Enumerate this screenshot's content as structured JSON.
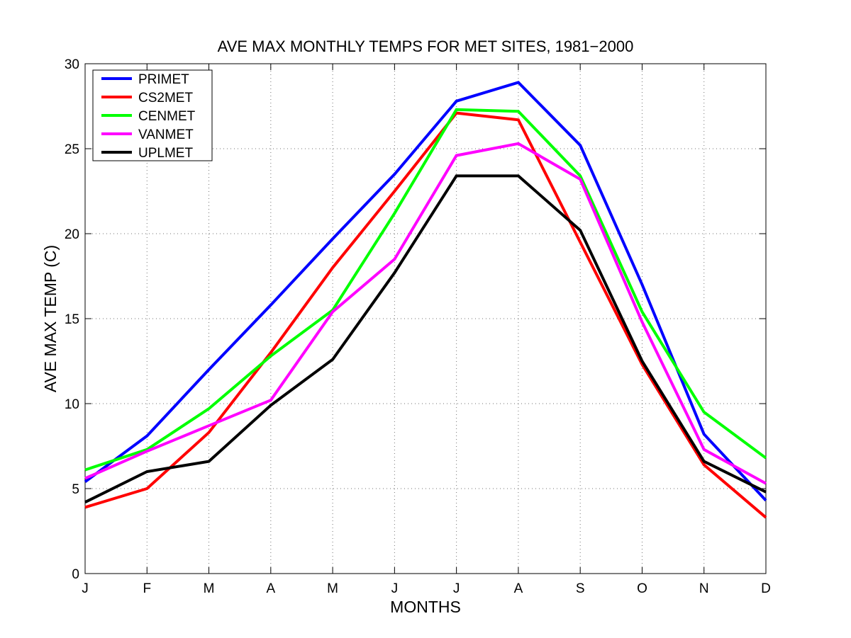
{
  "chart_data": {
    "type": "line",
    "title": "AVE MAX MONTHLY TEMPS FOR MET SITES, 1981−2000",
    "xlabel": "MONTHS",
    "ylabel": "AVE MAX TEMP (C)",
    "categories": [
      "J",
      "F",
      "M",
      "A",
      "M",
      "J",
      "J",
      "A",
      "S",
      "O",
      "N",
      "D"
    ],
    "ylim": [
      0,
      30
    ],
    "yticks": [
      "0",
      "5",
      "10",
      "15",
      "20",
      "25",
      "30"
    ],
    "grid": true,
    "legend_position": "top-left",
    "series": [
      {
        "name": "PRIMET",
        "color": "#0000ff",
        "values": [
          5.4,
          8.1,
          12.0,
          15.8,
          19.7,
          23.5,
          27.8,
          28.9,
          25.2,
          17.0,
          8.2,
          4.3
        ]
      },
      {
        "name": "CS2MET",
        "color": "#ff0000",
        "values": [
          3.9,
          5.0,
          8.3,
          13.0,
          18.0,
          22.5,
          27.1,
          26.7,
          19.5,
          12.3,
          6.4,
          3.3
        ]
      },
      {
        "name": "CENMET",
        "color": "#00ff00",
        "values": [
          6.1,
          7.3,
          9.7,
          12.8,
          15.5,
          21.2,
          27.3,
          27.2,
          23.4,
          15.4,
          9.5,
          6.8
        ]
      },
      {
        "name": "VANMET",
        "color": "#ff00ff",
        "values": [
          5.6,
          7.2,
          8.7,
          10.2,
          15.4,
          18.5,
          24.6,
          25.3,
          23.2,
          14.8,
          7.3,
          5.3
        ]
      },
      {
        "name": "UPLMET",
        "color": "#000000",
        "values": [
          4.2,
          6.0,
          6.6,
          9.9,
          12.6,
          17.7,
          23.4,
          23.4,
          20.2,
          12.5,
          6.6,
          4.8
        ]
      }
    ]
  }
}
